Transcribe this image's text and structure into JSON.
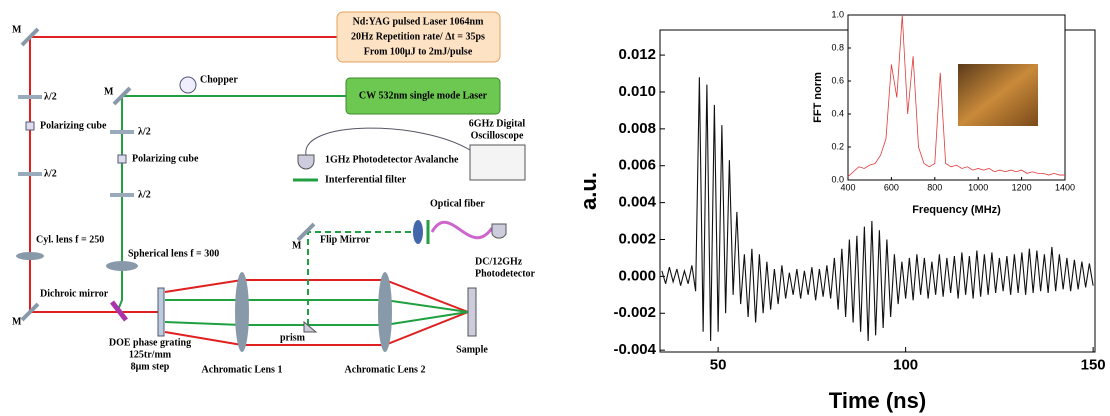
{
  "diagram": {
    "labels": [
      "Nd:YAG pulsed Laser 1064nm",
      "20Hz Repetition rate/ Δt = 35ps",
      "From 100μJ to 2mJ/pulse",
      "CW 532nm single mode Laser",
      "Chopper",
      "M",
      "M",
      "M",
      "M",
      "λ/2",
      "λ/2",
      "λ/2",
      "λ/2",
      "Polarizing cube",
      "Polarizing cube",
      "Cyl. lens f = 250",
      "Spherical lens f = 300",
      "Dichroic mirror",
      "DOE  phase grating",
      "125tr/mm",
      "8μm step",
      "Achromatic Lens 1",
      "Achromatic Lens 2",
      "Sample",
      "prism",
      "Flip Mirror",
      "Interferential filter",
      "1GHz Photodetector Avalanche",
      "6GHz Digital",
      "Oscilloscope",
      "Optical fiber",
      "DC/12GHz",
      "Photodetector"
    ]
  },
  "chart_data": [
    {
      "type": "line",
      "x_label": "Time (ns)",
      "y_label": "a.u.",
      "x": [
        35,
        36,
        37,
        38,
        39,
        40,
        41,
        42,
        43,
        44,
        45,
        46,
        47,
        48,
        49,
        50,
        51,
        52,
        53,
        54,
        55,
        56,
        57,
        58,
        59,
        60,
        61,
        62,
        63,
        64,
        65,
        66,
        67,
        68,
        69,
        70,
        71,
        72,
        73,
        74,
        75,
        76,
        77,
        78,
        79,
        80,
        81,
        82,
        83,
        84,
        85,
        86,
        87,
        88,
        89,
        90,
        91,
        92,
        93,
        94,
        95,
        96,
        97,
        98,
        99,
        100,
        101,
        102,
        103,
        104,
        105,
        106,
        107,
        108,
        109,
        110,
        111,
        112,
        113,
        114,
        115,
        116,
        117,
        118,
        119,
        120,
        121,
        122,
        123,
        124,
        125,
        126,
        127,
        128,
        129,
        130,
        131,
        132,
        133,
        134,
        135,
        136,
        137,
        138,
        139,
        140,
        141,
        142,
        143,
        144,
        145,
        146,
        147,
        148,
        149,
        150
      ],
      "series": [
        {
          "color": "#111111",
          "values": [
            0.0003,
            -0.0004,
            0.0005,
            -0.0003,
            0.0004,
            -0.0005,
            0.0003,
            -0.0004,
            0.0006,
            -0.0008,
            0.0108,
            -0.003,
            0.0104,
            -0.0035,
            0.0093,
            -0.003,
            0.0082,
            -0.002,
            0.0063,
            -0.001,
            0.0035,
            -0.0015,
            0.0012,
            -0.0022,
            0.0015,
            -0.0025,
            0.0012,
            -0.002,
            0.0008,
            -0.0018,
            0.0004,
            -0.0015,
            0.0006,
            -0.0012,
            0.0002,
            -0.001,
            0.0004,
            -0.0012,
            0.0003,
            -0.001,
            0.0005,
            -0.0013,
            0.0004,
            -0.0011,
            0.0006,
            -0.0012,
            0.001,
            -0.0018,
            0.0015,
            -0.0022,
            0.002,
            -0.0025,
            0.0022,
            -0.003,
            0.0027,
            -0.0035,
            0.003,
            -0.0032,
            0.0025,
            -0.0028,
            0.002,
            -0.0022,
            0.0012,
            -0.0015,
            0.0008,
            -0.0012,
            0.001,
            -0.0013,
            0.0012,
            -0.001,
            0.001,
            -0.0012,
            0.0008,
            -0.001,
            0.0012,
            -0.0011,
            0.001,
            -0.0009,
            0.0011,
            -0.0012,
            0.0013,
            -0.001,
            0.0011,
            -0.0012,
            0.0014,
            -0.0011,
            0.0012,
            -0.001,
            0.0013,
            -0.0009,
            0.001,
            -0.0008,
            0.0011,
            -0.001,
            0.0012,
            -0.0009,
            0.0013,
            -0.001,
            0.0015,
            -0.0009,
            0.0014,
            -0.0008,
            0.0012,
            -0.0009,
            0.0016,
            -0.0008,
            0.0012,
            -0.0007,
            0.001,
            -0.0008,
            0.0009,
            -0.0007,
            0.0008,
            -0.0006,
            0.0007,
            -0.0005
          ]
        }
      ],
      "xlim": [
        34.5,
        150.5
      ],
      "xticks": [
        50,
        100,
        150
      ],
      "ylim": [
        -0.0041,
        0.01336
      ],
      "yticks": [
        -0.004,
        -0.002,
        {
          "value": 0,
          "label": "0.000"
        },
        0.002,
        0.004,
        0.006,
        0.008,
        {
          "value": 0.01,
          "label": "0.010"
        },
        0.012
      ]
    },
    {
      "type": "line",
      "x_label": "Frequency (MHz)",
      "y_label": "FFT norm",
      "x": [
        400,
        425,
        450,
        475,
        500,
        525,
        550,
        575,
        600,
        625,
        650,
        675,
        700,
        725,
        750,
        775,
        800,
        825,
        850,
        875,
        900,
        925,
        950,
        975,
        1000,
        1025,
        1050,
        1075,
        1100,
        1125,
        1150,
        1175,
        1200,
        1225,
        1250,
        1275,
        1300,
        1325,
        1350,
        1375,
        1400
      ],
      "series": [
        {
          "color": "#e03a3a",
          "values": [
            0.02,
            0.05,
            0.08,
            0.07,
            0.09,
            0.1,
            0.15,
            0.25,
            0.7,
            0.5,
            1.0,
            0.4,
            0.75,
            0.2,
            0.1,
            0.08,
            0.1,
            0.65,
            0.1,
            0.08,
            0.09,
            0.07,
            0.08,
            0.06,
            0.07,
            0.06,
            0.07,
            0.05,
            0.06,
            0.05,
            0.06,
            0.05,
            0.06,
            0.04,
            0.05,
            0.04,
            0.04,
            0.03,
            0.04,
            0.03,
            0.03
          ]
        }
      ],
      "xlim": [
        400,
        1400
      ],
      "xticks": [
        400,
        600,
        800,
        1000,
        1200,
        1400
      ],
      "ylim": [
        0,
        1.0
      ],
      "yticks": [
        {
          "value": 0,
          "label": "0.0"
        },
        {
          "value": 0.2,
          "label": "0.2"
        },
        {
          "value": 0.4,
          "label": "0.4"
        },
        {
          "value": 0.6,
          "label": "0.6"
        },
        {
          "value": 0.8,
          "label": "0.8"
        },
        {
          "value": 1.0,
          "label": "1.0"
        }
      ]
    }
  ]
}
